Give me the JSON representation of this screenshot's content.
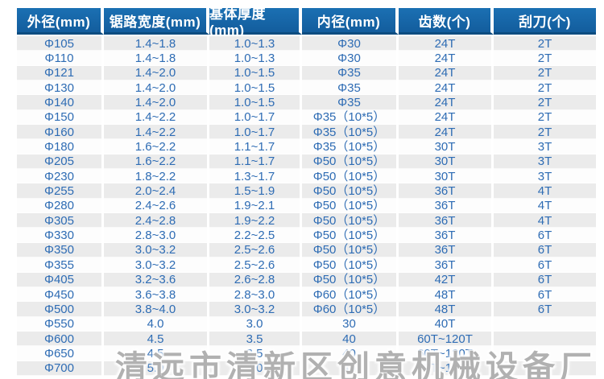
{
  "colors": {
    "header_bg_top": "#1b70b3",
    "header_bg_bottom": "#135d9d",
    "header_border": "#0d4c80",
    "header_text": "#ffffff",
    "body_text": "#2e6cb4",
    "stripe_gray": "#ebebeb",
    "stripe_white": "#fdfdfd",
    "watermark_gray": "#7d7d7d"
  },
  "table": {
    "headers": [
      "外径(mm)",
      "锯路宽度(mm)",
      "基体厚度(mm)",
      "内径(mm)",
      "齿数(个)",
      "刮刀(个)"
    ],
    "rows": [
      [
        "Φ105",
        "1.4~1.8",
        "1.0~1.3",
        "Φ30",
        "24T",
        "2T"
      ],
      [
        "Φ110",
        "1.4~1.8",
        "1.0~1.3",
        "Φ30",
        "24T",
        "2T"
      ],
      [
        "Φ121",
        "1.4~2.0",
        "1.0~1.5",
        "Φ35",
        "24T",
        "2T"
      ],
      [
        "Φ130",
        "1.4~2.0",
        "1.0~1.5",
        "Φ35",
        "24T",
        "2T"
      ],
      [
        "Φ140",
        "1.4~2.0",
        "1.0~1.5",
        "Φ35",
        "24T",
        "2T"
      ],
      [
        "Φ150",
        "1.4~2.2",
        "1.0~1.7",
        "Φ35（10*5）",
        "24T",
        "2T"
      ],
      [
        "Φ160",
        "1.4~2.2",
        "1.0~1.7",
        "Φ35（10*5）",
        "24T",
        "2T"
      ],
      [
        "Φ180",
        "1.6~2.2",
        "1.1~1.7",
        "Φ35（10*5）",
        "30T",
        "3T"
      ],
      [
        "Φ205",
        "1.6~2.2",
        "1.1~1.7",
        "Φ50（10*5）",
        "30T",
        "3T"
      ],
      [
        "Φ230",
        "1.8~2.2",
        "1.3~1.7",
        "Φ50（10*5）",
        "30T",
        "3T"
      ],
      [
        "Φ255",
        "2.0~2.4",
        "1.5~1.9",
        "Φ50（10*5）",
        "36T",
        "4T"
      ],
      [
        "Φ280",
        "2.4~2.6",
        "1.9~2.1",
        "Φ50（10*5）",
        "36T",
        "4T"
      ],
      [
        "Φ305",
        "2.4~2.8",
        "1.9~2.2",
        "Φ50（10*5）",
        "36T",
        "4T"
      ],
      [
        "Φ330",
        "2.8~3.0",
        "2.2~2.5",
        "Φ50（10*5）",
        "36T",
        "6T"
      ],
      [
        "Φ350",
        "3.0~3.2",
        "2.5~2.6",
        "Φ50（10*5）",
        "36T",
        "6T"
      ],
      [
        "Φ355",
        "3.0~3.2",
        "2.5~2.6",
        "Φ50（10*5）",
        "36T",
        "6T"
      ],
      [
        "Φ405",
        "3.2~3.6",
        "2.6~2.8",
        "Φ50（10*5）",
        "42T",
        "6T"
      ],
      [
        "Φ450",
        "3.6~3.8",
        "2.8~3.0",
        "Φ60（10*5）",
        "48T",
        "6T"
      ],
      [
        "Φ500",
        "3.8~4.0",
        "3.0~3.2",
        "Φ60（10*5）",
        "48T",
        "6T"
      ],
      [
        "Φ550",
        "4.0",
        "3.0",
        "30",
        "40T",
        ""
      ],
      [
        "Φ600",
        "4.5",
        "3.5",
        "40",
        "60T~120T",
        ""
      ],
      [
        "Φ650",
        "4.5",
        "3.5",
        "40",
        "60T~120T",
        ""
      ],
      [
        "Φ700",
        "5.0",
        "4.0",
        "40",
        "60T~120T",
        ""
      ]
    ]
  },
  "watermark": {
    "text": "清远市清新区创意机械设备厂"
  }
}
